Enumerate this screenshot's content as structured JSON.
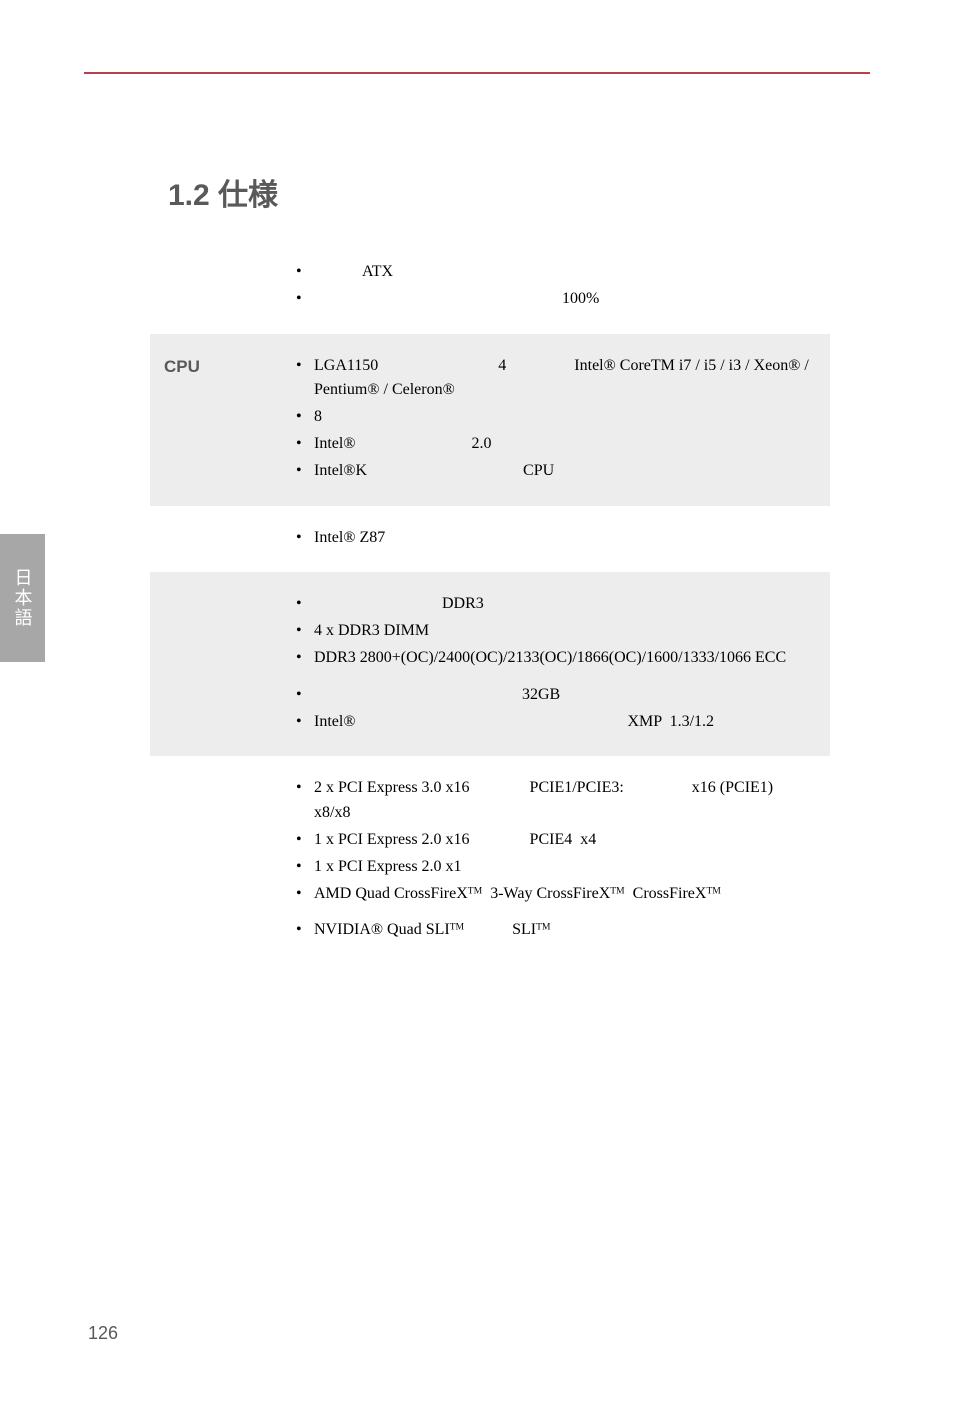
{
  "page": {
    "number": "126",
    "side_tab_label": "日本語",
    "section_heading": "1.2 仕様"
  },
  "rows": [
    {
      "label": "",
      "gray": false,
      "items": [
        "            ATX",
        "                                                              100%"
      ]
    },
    {
      "label": "CPU",
      "gray": true,
      "items": [
        "LGA1150                              4                 Intel® CoreTM i7 / i5 / i3 / Xeon® / Pentium® / Celeron®",
        "",
        "8",
        "Intel®                             2.0",
        "Intel®K                                       CPU"
      ]
    },
    {
      "label": "",
      "gray": false,
      "items": [
        "Intel® Z87"
      ]
    },
    {
      "label": "",
      "gray": true,
      "items": [
        "                                DDR3",
        "4 x DDR3 DIMM",
        "DDR3 2800+(OC)/2400(OC)/2133(OC)/1866(OC)/1600/1333/1066 ECC",
        "__SPACER__",
        "                                                    32GB",
        "Intel®                                                                    XMP  1.3/1.2"
      ]
    },
    {
      "label": "",
      "gray": false,
      "items": [
        "2 x PCI Express 3.0 x16               PCIE1/PCIE3:                 x16 (PCIE1)                            x8/x8",
        "1 x PCI Express 2.0 x16               PCIE4  x4",
        "1 x PCI Express 2.0 x1",
        "AMD Quad CrossFireXᵀᴹ  3-Way CrossFireXᵀᴹ  CrossFireXᵀᴹ",
        "__SPACER__",
        "NVIDIA® Quad SLIᵀᴹ            SLIᵀᴹ"
      ]
    }
  ]
}
